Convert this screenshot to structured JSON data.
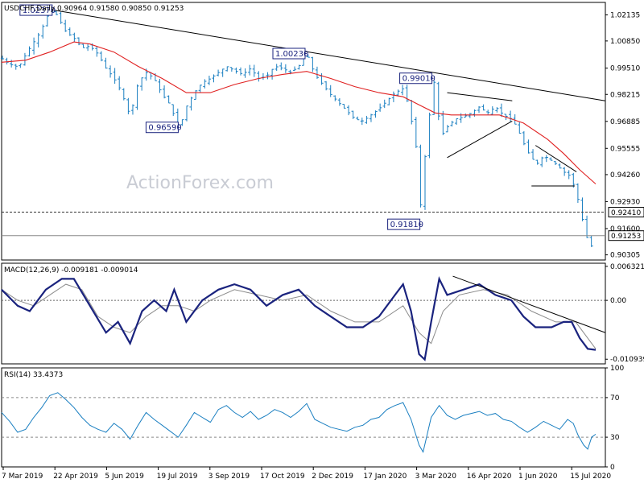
{
  "chart_data": [
    {
      "type": "candlestick",
      "panel": "price",
      "title": "USDCHF,Daily",
      "ohlc_readout": "0.90964 0.91580 0.90850 0.91253",
      "watermark": "ActionForex.com",
      "ylim": [
        0.9005,
        1.0275
      ],
      "y_ticks": [
        "1.02135",
        "1.00850",
        "0.99510",
        "0.98215",
        "0.96885",
        "0.95555",
        "0.94260",
        "0.92930",
        "0.91600",
        "0.90305"
      ],
      "x_ticks": [
        "7 Mar 2019",
        "22 Apr 2019",
        "5 Jun 2019",
        "19 Jul 2019",
        "3 Sep 2019",
        "17 Oct 2019",
        "2 Dec 2019",
        "17 Jan 2020",
        "3 Mar 2020",
        "16 Apr 2020",
        "1 Jun 2020",
        "15 Jul 2020"
      ],
      "close_path": [
        [
          0,
          1.0
        ],
        [
          10,
          0.997
        ],
        [
          18,
          0.996
        ],
        [
          25,
          0.9975
        ],
        [
          30,
          1.002
        ],
        [
          40,
          1.008
        ],
        [
          50,
          1.014
        ],
        [
          55,
          1.02
        ],
        [
          65,
          1.0237
        ],
        [
          72,
          1.019
        ],
        [
          80,
          1.013
        ],
        [
          90,
          1.01
        ],
        [
          100,
          1.005
        ],
        [
          110,
          1.006
        ],
        [
          120,
          1.002
        ],
        [
          130,
          0.995
        ],
        [
          140,
          0.99
        ],
        [
          150,
          0.983
        ],
        [
          157,
          0.9735
        ],
        [
          163,
          0.976
        ],
        [
          170,
          0.988
        ],
        [
          180,
          0.993
        ],
        [
          190,
          0.99
        ],
        [
          200,
          0.982
        ],
        [
          210,
          0.977
        ],
        [
          218,
          0.968
        ],
        [
          222,
          0.9659
        ],
        [
          230,
          0.976
        ],
        [
          240,
          0.983
        ],
        [
          250,
          0.988
        ],
        [
          260,
          0.99
        ],
        [
          270,
          0.993
        ],
        [
          280,
          0.996
        ],
        [
          290,
          0.994
        ],
        [
          300,
          0.992
        ],
        [
          310,
          0.995
        ],
        [
          320,
          0.99
        ],
        [
          330,
          0.991
        ],
        [
          340,
          0.996
        ],
        [
          350,
          0.995
        ],
        [
          360,
          0.993
        ],
        [
          370,
          0.996
        ],
        [
          380,
          1.0023
        ],
        [
          390,
          0.992
        ],
        [
          400,
          0.987
        ],
        [
          410,
          0.982
        ],
        [
          420,
          0.978
        ],
        [
          430,
          0.974
        ],
        [
          440,
          0.97
        ],
        [
          450,
          0.969
        ],
        [
          460,
          0.972
        ],
        [
          470,
          0.975
        ],
        [
          480,
          0.979
        ],
        [
          490,
          0.983
        ],
        [
          500,
          0.985
        ],
        [
          505,
          0.979
        ],
        [
          510,
          0.97
        ],
        [
          515,
          0.961
        ],
        [
          520,
          0.942
        ],
        [
          523,
          0.9181
        ],
        [
          528,
          0.956
        ],
        [
          533,
          0.972
        ],
        [
          538,
          0.9901
        ],
        [
          542,
          0.977
        ],
        [
          548,
          0.962
        ],
        [
          555,
          0.966
        ],
        [
          565,
          0.97
        ],
        [
          575,
          0.971
        ],
        [
          585,
          0.973
        ],
        [
          595,
          0.976
        ],
        [
          605,
          0.973
        ],
        [
          615,
          0.976
        ],
        [
          625,
          0.972
        ],
        [
          635,
          0.97
        ],
        [
          642,
          0.966
        ],
        [
          648,
          0.96
        ],
        [
          655,
          0.954
        ],
        [
          662,
          0.95
        ],
        [
          668,
          0.948
        ],
        [
          675,
          0.952
        ],
        [
          683,
          0.95
        ],
        [
          690,
          0.948
        ],
        [
          700,
          0.944
        ],
        [
          708,
          0.942
        ],
        [
          712,
          0.938
        ],
        [
          716,
          0.934
        ],
        [
          720,
          0.926
        ],
        [
          725,
          0.918
        ],
        [
          730,
          0.91
        ],
        [
          733,
          0.905
        ],
        [
          737,
          0.911
        ],
        [
          740,
          0.9125
        ]
      ],
      "ma_path": [
        [
          0,
          0.998
        ],
        [
          30,
          0.999
        ],
        [
          60,
          1.003
        ],
        [
          90,
          1.008
        ],
        [
          110,
          1.007
        ],
        [
          140,
          1.003
        ],
        [
          170,
          0.996
        ],
        [
          200,
          0.99
        ],
        [
          230,
          0.983
        ],
        [
          260,
          0.983
        ],
        [
          290,
          0.987
        ],
        [
          320,
          0.99
        ],
        [
          350,
          0.992
        ],
        [
          380,
          0.9935
        ],
        [
          410,
          0.99
        ],
        [
          440,
          0.986
        ],
        [
          470,
          0.983
        ],
        [
          500,
          0.981
        ],
        [
          520,
          0.977
        ],
        [
          540,
          0.973
        ],
        [
          560,
          0.972
        ],
        [
          590,
          0.972
        ],
        [
          620,
          0.972
        ],
        [
          650,
          0.968
        ],
        [
          680,
          0.96
        ],
        [
          700,
          0.953
        ],
        [
          720,
          0.945
        ],
        [
          740,
          0.938
        ]
      ],
      "trendlines": [
        {
          "from": [
            65,
            1.0237
          ],
          "to": [
            752,
            0.979
          ],
          "color": "#000000"
        },
        {
          "from": [
            555,
            0.983
          ],
          "to": [
            636,
            0.979
          ],
          "color": "#000000"
        },
        {
          "from": [
            555,
            0.951
          ],
          "to": [
            636,
            0.969
          ],
          "color": "#000000"
        },
        {
          "from": [
            665,
            0.957
          ],
          "to": [
            716,
            0.944
          ],
          "color": "#000000"
        },
        {
          "from": [
            660,
            0.937
          ],
          "to": [
            714,
            0.937
          ],
          "color": "#000000"
        }
      ],
      "reference_lines": [
        {
          "value": 0.9241,
          "label": "0.92410",
          "style": "dashed",
          "color": "#333333"
        },
        {
          "value": 0.91253,
          "label": "0.91253",
          "style": "solid",
          "color": "#888888"
        }
      ],
      "annotations": [
        {
          "text": "1.02370",
          "x": 65,
          "y": 1.0237,
          "side": "left"
        },
        {
          "text": "1.00230",
          "x": 380,
          "y": 1.0023,
          "side": "left"
        },
        {
          "text": "0.99010",
          "x": 538,
          "y": 0.9901,
          "side": "left"
        },
        {
          "text": "0.96590",
          "x": 222,
          "y": 0.9659,
          "side": "left"
        },
        {
          "text": "0.91810",
          "x": 523,
          "y": 0.9181,
          "side": "left"
        }
      ]
    },
    {
      "type": "line",
      "panel": "macd",
      "title": "MACD(12,26,9) -0.009181 -0.009014",
      "ylim": [
        -0.0118,
        0.0069
      ],
      "y_ticks": [
        "0.006321",
        "0.00",
        "-0.010939"
      ],
      "macd_path": [
        [
          0,
          0.002
        ],
        [
          20,
          -0.001
        ],
        [
          35,
          -0.002
        ],
        [
          55,
          0.002
        ],
        [
          75,
          0.004
        ],
        [
          90,
          0.004
        ],
        [
          110,
          -0.001
        ],
        [
          130,
          -0.006
        ],
        [
          145,
          -0.004
        ],
        [
          160,
          -0.008
        ],
        [
          175,
          -0.002
        ],
        [
          190,
          0.0
        ],
        [
          205,
          -0.002
        ],
        [
          215,
          0.002
        ],
        [
          230,
          -0.004
        ],
        [
          250,
          0.0
        ],
        [
          270,
          0.002
        ],
        [
          290,
          0.003
        ],
        [
          310,
          0.002
        ],
        [
          330,
          -0.001
        ],
        [
          350,
          0.001
        ],
        [
          370,
          0.002
        ],
        [
          390,
          -0.001
        ],
        [
          410,
          -0.003
        ],
        [
          430,
          -0.005
        ],
        [
          450,
          -0.005
        ],
        [
          470,
          -0.003
        ],
        [
          490,
          0.001
        ],
        [
          500,
          0.003
        ],
        [
          510,
          -0.002
        ],
        [
          520,
          -0.01
        ],
        [
          527,
          -0.011
        ],
        [
          535,
          -0.004
        ],
        [
          545,
          0.004
        ],
        [
          555,
          0.001
        ],
        [
          575,
          0.002
        ],
        [
          595,
          0.003
        ],
        [
          615,
          0.001
        ],
        [
          635,
          0.0
        ],
        [
          650,
          -0.003
        ],
        [
          665,
          -0.005
        ],
        [
          685,
          -0.005
        ],
        [
          700,
          -0.004
        ],
        [
          710,
          -0.004
        ],
        [
          720,
          -0.007
        ],
        [
          730,
          -0.009
        ],
        [
          740,
          -0.0092
        ]
      ],
      "signal_path": [
        [
          0,
          0.002
        ],
        [
          20,
          0.0
        ],
        [
          40,
          -0.001
        ],
        [
          60,
          0.001
        ],
        [
          80,
          0.003
        ],
        [
          100,
          0.002
        ],
        [
          120,
          -0.003
        ],
        [
          140,
          -0.005
        ],
        [
          160,
          -0.006
        ],
        [
          180,
          -0.003
        ],
        [
          200,
          -0.001
        ],
        [
          220,
          -0.001
        ],
        [
          240,
          -0.002
        ],
        [
          260,
          0.0
        ],
        [
          290,
          0.002
        ],
        [
          320,
          0.001
        ],
        [
          350,
          0.0
        ],
        [
          380,
          0.001
        ],
        [
          410,
          -0.002
        ],
        [
          440,
          -0.004
        ],
        [
          470,
          -0.004
        ],
        [
          500,
          -0.001
        ],
        [
          520,
          -0.006
        ],
        [
          535,
          -0.008
        ],
        [
          550,
          -0.002
        ],
        [
          570,
          0.001
        ],
        [
          600,
          0.002
        ],
        [
          630,
          0.001
        ],
        [
          660,
          -0.002
        ],
        [
          690,
          -0.004
        ],
        [
          715,
          -0.004
        ],
        [
          740,
          -0.009
        ]
      ],
      "trendlines": [
        {
          "from": [
            562,
            0.0045
          ],
          "to": [
            752,
            -0.006
          ],
          "color": "#000000"
        }
      ]
    },
    {
      "type": "line",
      "panel": "rsi",
      "title": "RSI(14) 33.4373",
      "ylim": [
        0,
        100
      ],
      "y_ticks": [
        "100",
        "70",
        "30",
        "0"
      ],
      "guide_levels": [
        70,
        30
      ],
      "rsi_path": [
        [
          0,
          55
        ],
        [
          10,
          46
        ],
        [
          20,
          35
        ],
        [
          30,
          38
        ],
        [
          40,
          50
        ],
        [
          50,
          60
        ],
        [
          60,
          72
        ],
        [
          70,
          75
        ],
        [
          80,
          68
        ],
        [
          90,
          60
        ],
        [
          100,
          50
        ],
        [
          110,
          42
        ],
        [
          120,
          38
        ],
        [
          130,
          35
        ],
        [
          140,
          44
        ],
        [
          150,
          38
        ],
        [
          160,
          28
        ],
        [
          170,
          42
        ],
        [
          180,
          55
        ],
        [
          190,
          48
        ],
        [
          200,
          42
        ],
        [
          210,
          36
        ],
        [
          220,
          30
        ],
        [
          230,
          42
        ],
        [
          240,
          55
        ],
        [
          250,
          50
        ],
        [
          260,
          45
        ],
        [
          270,
          58
        ],
        [
          280,
          62
        ],
        [
          290,
          55
        ],
        [
          300,
          50
        ],
        [
          310,
          56
        ],
        [
          320,
          48
        ],
        [
          330,
          52
        ],
        [
          340,
          58
        ],
        [
          350,
          55
        ],
        [
          360,
          50
        ],
        [
          370,
          56
        ],
        [
          380,
          64
        ],
        [
          390,
          48
        ],
        [
          400,
          44
        ],
        [
          410,
          40
        ],
        [
          420,
          38
        ],
        [
          430,
          36
        ],
        [
          440,
          40
        ],
        [
          450,
          42
        ],
        [
          460,
          48
        ],
        [
          470,
          50
        ],
        [
          480,
          58
        ],
        [
          490,
          62
        ],
        [
          500,
          65
        ],
        [
          510,
          48
        ],
        [
          520,
          22
        ],
        [
          525,
          15
        ],
        [
          535,
          50
        ],
        [
          545,
          62
        ],
        [
          555,
          52
        ],
        [
          565,
          48
        ],
        [
          575,
          52
        ],
        [
          585,
          54
        ],
        [
          595,
          56
        ],
        [
          605,
          52
        ],
        [
          615,
          54
        ],
        [
          625,
          48
        ],
        [
          635,
          46
        ],
        [
          645,
          40
        ],
        [
          655,
          35
        ],
        [
          665,
          40
        ],
        [
          675,
          46
        ],
        [
          685,
          42
        ],
        [
          695,
          38
        ],
        [
          705,
          48
        ],
        [
          712,
          44
        ],
        [
          718,
          32
        ],
        [
          725,
          22
        ],
        [
          730,
          18
        ],
        [
          735,
          30
        ],
        [
          740,
          33
        ]
      ]
    }
  ],
  "colors": {
    "candle_up": "#1a7fc1",
    "candle_down": "#1a7fc1",
    "moving_average": "#e02020",
    "macd": "#1a237e",
    "signal": "#8c8c8c",
    "rsi": "#1a7fc1",
    "trendline": "#000000",
    "box_border": "#1a237e",
    "watermark": "#c9ccd4"
  }
}
